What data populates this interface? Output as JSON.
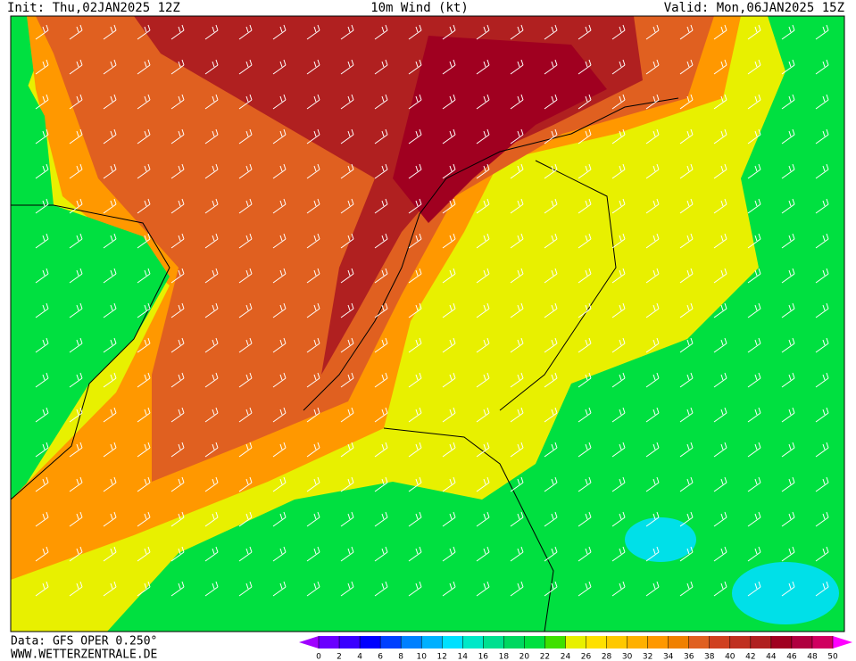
{
  "header": {
    "init": "Init: Thu,02JAN2025 12Z",
    "title": "10m Wind (kt)",
    "valid": "Valid: Mon,06JAN2025 15Z"
  },
  "footer": {
    "source": "Data: GFS OPER 0.250°",
    "site": "WWW.WETTERZENTRALE.DE"
  },
  "colorbar": {
    "labels": [
      0,
      2,
      4,
      6,
      8,
      10,
      12,
      14,
      16,
      18,
      20,
      22,
      24,
      26,
      28,
      30,
      32,
      34,
      36,
      38,
      40,
      42,
      44,
      46,
      48,
      50
    ],
    "colors": [
      "#6a00ff",
      "#3a00ff",
      "#0000ff",
      "#0040ff",
      "#0080ff",
      "#00b0ff",
      "#00e0ff",
      "#00e8c8",
      "#00e090",
      "#00d860",
      "#00e040",
      "#40e000",
      "#e8f000",
      "#ffe000",
      "#ffc800",
      "#ffb000",
      "#ff9800",
      "#f08000",
      "#e06020",
      "#d04020",
      "#c03020",
      "#b02020",
      "#a00020",
      "#b00040",
      "#d00060"
    ],
    "arrow_colors": [
      "#a000ff",
      "#ff00ff"
    ]
  }
}
